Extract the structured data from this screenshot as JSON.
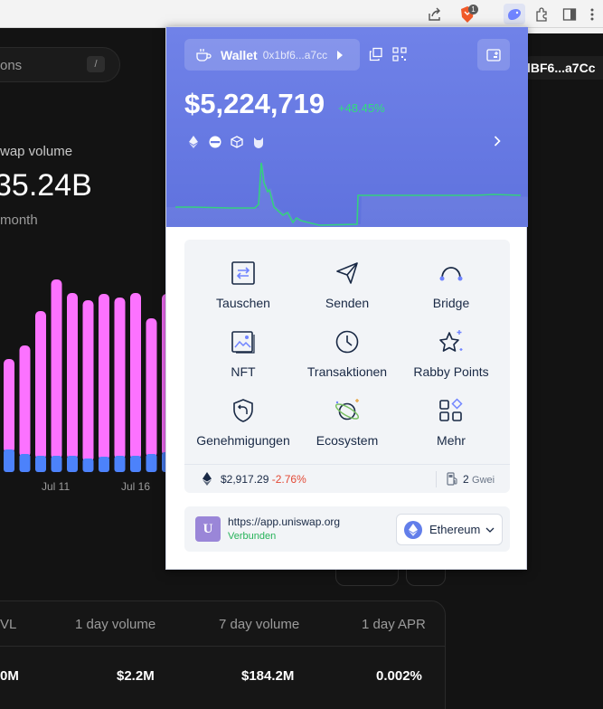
{
  "browser": {
    "extension_badge": "1"
  },
  "background_page": {
    "search_text": "ons",
    "search_shortcut": "/",
    "connected_address": "lBF6...a7Cc",
    "volume_title": "wap volume",
    "volume_value": "35.24B",
    "volume_period": "month",
    "chart_data": {
      "type": "bar",
      "xlabels": [
        "Jul 11",
        "Jul 16"
      ],
      "series": [
        {
          "values": [
            100,
            120,
            160,
            195,
            180,
            175,
            180,
            175,
            180,
            150,
            175,
            215,
            205,
            170,
            160
          ]
        },
        {
          "values": [
            25,
            20,
            18,
            18,
            18,
            15,
            17,
            18,
            18,
            20,
            22,
            28,
            25,
            22,
            20
          ]
        }
      ],
      "colors": [
        "#fc72ff",
        "#4c82fb"
      ]
    },
    "table": {
      "headers": [
        "VL",
        "1 day volume",
        "7 day volume",
        "1 day APR"
      ],
      "row": [
        "0M",
        "$2.2M",
        "$184.2M",
        "0.002%"
      ]
    }
  },
  "popup": {
    "wallet_name": "Wallet",
    "wallet_address": "0x1bf6...a7cc",
    "balance": "$5,224,719",
    "balance_change": "+48.45%",
    "chains": [
      "eth-icon",
      "chain-circle-icon",
      "chain-cube-icon",
      "chain-cat-icon"
    ],
    "actions": [
      {
        "label": "Tauschen",
        "icon": "swap-icon"
      },
      {
        "label": "Senden",
        "icon": "send-icon"
      },
      {
        "label": "Bridge",
        "icon": "bridge-icon"
      },
      {
        "label": "NFT",
        "icon": "nft-icon"
      },
      {
        "label": "Transaktionen",
        "icon": "clock-icon"
      },
      {
        "label": "Rabby Points",
        "icon": "star-icon"
      },
      {
        "label": "Genehmigungen",
        "icon": "shield-icon"
      },
      {
        "label": "Ecosystem",
        "icon": "planet-icon"
      },
      {
        "label": "Mehr",
        "icon": "grid-icon"
      }
    ],
    "eth_price": "$2,917.29",
    "eth_change": "-2.76%",
    "gas_value": "2",
    "gas_unit": "Gwei",
    "site": {
      "logo_letter": "U",
      "url": "https://app.uniswap.org",
      "status": "Verbunden",
      "chain": "Ethereum"
    },
    "colors": {
      "header": "#6678e2",
      "positive": "#2fe07a",
      "negative": "#e34935",
      "connected": "#27b35a"
    }
  }
}
